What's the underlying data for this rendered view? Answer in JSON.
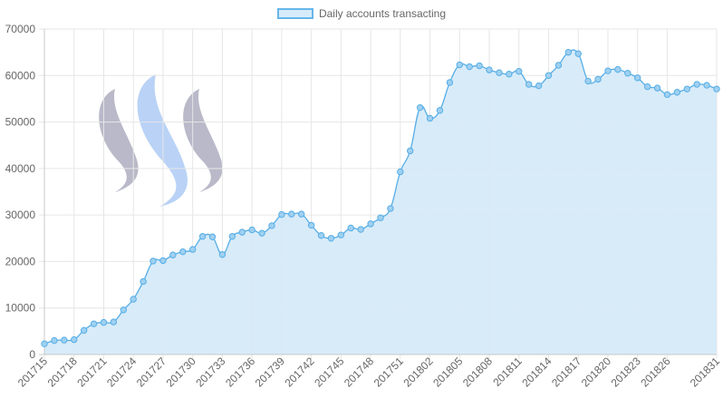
{
  "legend": {
    "label": "Daily accounts transacting"
  },
  "colors": {
    "line": "#56aee6",
    "fill": "#d6eaf8",
    "point_fill": "#9fd0f0",
    "grid": "#e6e6e6",
    "axis_text": "#666666",
    "logo_grey": "#b9b9c9",
    "logo_blue": "#b9d2f6"
  },
  "chart_data": {
    "type": "line",
    "title": "",
    "xlabel": "",
    "ylabel": "",
    "ylim": [
      0,
      70000
    ],
    "yticks": [
      0,
      10000,
      20000,
      30000,
      40000,
      50000,
      60000,
      70000
    ],
    "xticks_shown": [
      "201715",
      "201718",
      "201721",
      "201724",
      "201727",
      "201730",
      "201733",
      "201736",
      "201739",
      "201742",
      "201745",
      "201748",
      "201751",
      "201802",
      "201805",
      "201808",
      "201811",
      "201814",
      "201817",
      "201820",
      "201823",
      "201826",
      "201831"
    ],
    "grid": true,
    "legend_position": "top-center",
    "categories": [
      "201715",
      "201716",
      "201717",
      "201718",
      "201719",
      "201720",
      "201721",
      "201722",
      "201723",
      "201724",
      "201725",
      "201726",
      "201727",
      "201728",
      "201729",
      "201730",
      "201731",
      "201732",
      "201733",
      "201734",
      "201735",
      "201736",
      "201737",
      "201738",
      "201739",
      "201740",
      "201741",
      "201742",
      "201743",
      "201744",
      "201745",
      "201746",
      "201747",
      "201748",
      "201749",
      "201750",
      "201751",
      "201752",
      "201801",
      "201802",
      "201803",
      "201804",
      "201805",
      "201806",
      "201807",
      "201808",
      "201809",
      "201810",
      "201811",
      "201812",
      "201813",
      "201814",
      "201815",
      "201816",
      "201817",
      "201818",
      "201819",
      "201820",
      "201821",
      "201822",
      "201823",
      "201824",
      "201825",
      "201826",
      "201827",
      "201828",
      "201829",
      "201830",
      "201831"
    ],
    "series": [
      {
        "name": "Daily accounts transacting",
        "values": [
          2300,
          3000,
          3100,
          3200,
          5200,
          6600,
          6900,
          7000,
          9600,
          11900,
          15700,
          20100,
          20200,
          21400,
          22100,
          22600,
          25400,
          25300,
          21500,
          25400,
          26300,
          26800,
          26100,
          27700,
          30100,
          30200,
          30200,
          27800,
          25600,
          25000,
          25700,
          27200,
          26900,
          28100,
          29400,
          31400,
          39300,
          43800,
          53100,
          50800,
          52500,
          58500,
          62300,
          61900,
          62100,
          61200,
          60600,
          60300,
          60900,
          58100,
          57800,
          60000,
          62200,
          65000,
          64700,
          58800,
          59200,
          61000,
          61300,
          60500,
          59500,
          57600,
          57300,
          55900,
          56400,
          57100,
          58100,
          57900,
          57100
        ]
      }
    ]
  }
}
